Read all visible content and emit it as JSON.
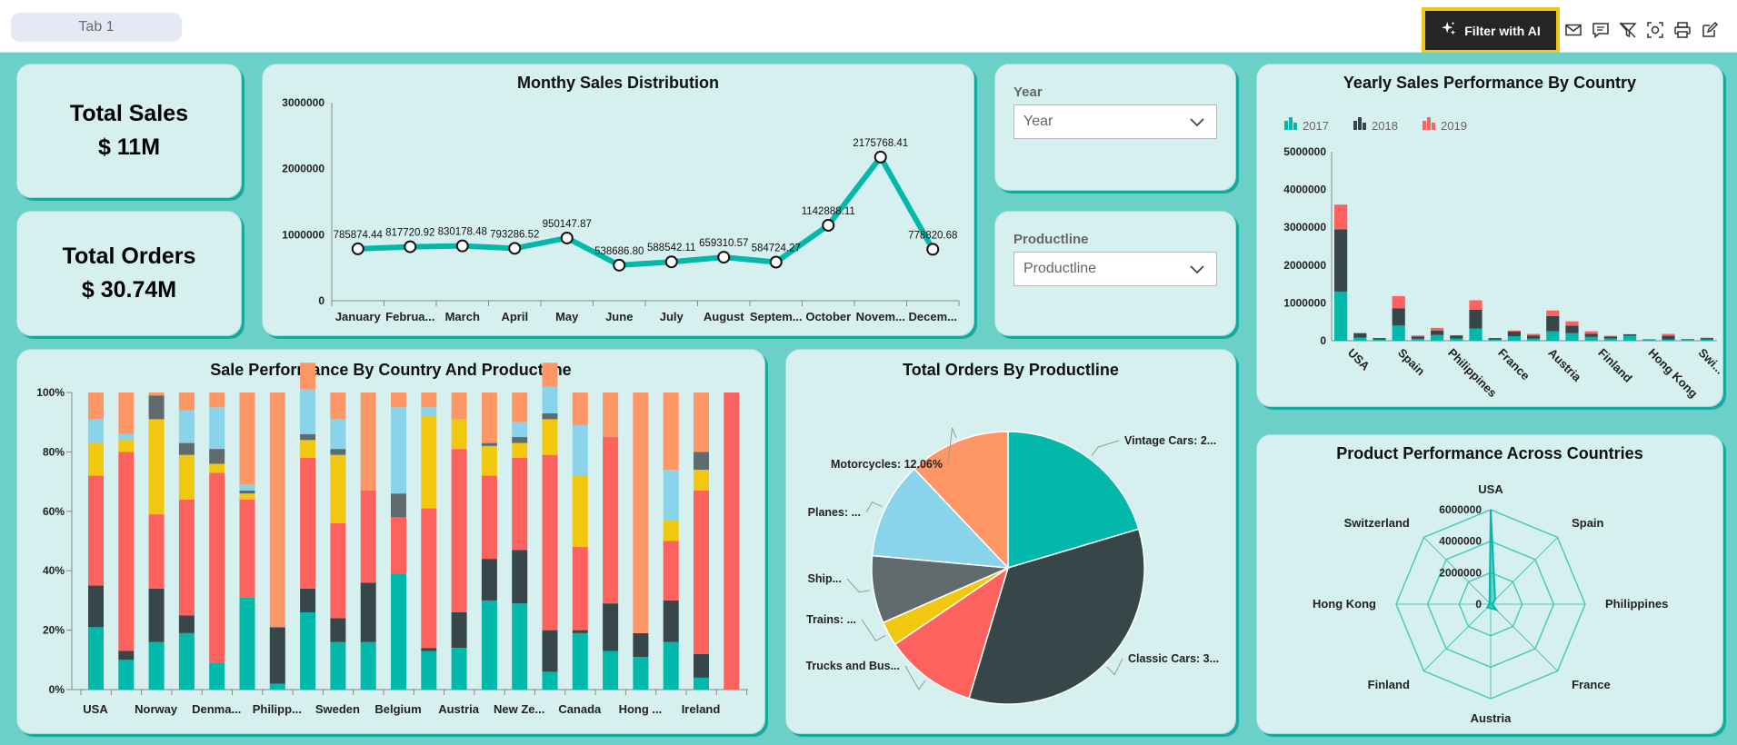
{
  "tab": {
    "label": "Tab 1"
  },
  "toolbar": {
    "ai_button": "Filter with AI"
  },
  "kpis": {
    "sales_label": "Total Sales",
    "sales_value": "$ 11M",
    "orders_label": "Total Orders",
    "orders_value": "$ 30.74M"
  },
  "slicers": {
    "year_title": "Year",
    "year_placeholder": "Year",
    "productline_title": "Productline",
    "productline_placeholder": "Productline"
  },
  "colors": {
    "teal": "#01b8aa",
    "dark": "#374649",
    "red": "#fd625e",
    "yellow": "#f2c80f",
    "gray": "#5f6b6d",
    "lightblue": "#8ad4eb",
    "orange": "#fe9666",
    "background": "#6ad0c8",
    "card": "#d5f0ef"
  },
  "charts": {
    "monthly": {
      "title": "Monthy Sales Distribution",
      "type": "line",
      "categories": [
        "January",
        "Februa...",
        "March",
        "April",
        "May",
        "June",
        "July",
        "August",
        "Septem...",
        "October",
        "Novem...",
        "Decem..."
      ],
      "values": [
        785874.44,
        817720.92,
        830178.48,
        793286.52,
        950147.87,
        538686.8,
        588542.11,
        659310.57,
        584724.27,
        1142888.11,
        2175768.41,
        778820.68
      ],
      "labels": [
        "785874.44",
        "817720.92",
        "830178.48",
        "793286.52",
        "950147.87",
        "538686.80",
        "588542.11",
        "659310.57",
        "584724.27",
        "1142888.11",
        "2175768.41",
        "778820.68"
      ],
      "yticks": [
        "0",
        "1000000",
        "2000000",
        "3000000"
      ],
      "ylim": [
        0,
        3000000
      ]
    },
    "yearly": {
      "title": "Yearly Sales Performance By Country",
      "type": "bar",
      "legend": [
        "2017",
        "2018",
        "2019"
      ],
      "categories": [
        "USA",
        "Spain",
        "Philippines",
        "France",
        "Austria",
        "Finland",
        "Hong Kong",
        "Swi..."
      ],
      "yticks": [
        "0",
        "1000000",
        "2000000",
        "3000000",
        "4000000",
        "5000000"
      ],
      "ylim": [
        0,
        5000000
      ],
      "series": [
        {
          "name": "2017",
          "values": [
            1300000,
            80000,
            30000,
            400000,
            50000,
            150000,
            60000,
            320000,
            30000,
            120000,
            60000,
            250000,
            200000,
            100000,
            60000,
            130000,
            20000,
            30000,
            20000,
            30000
          ]
        },
        {
          "name": "2018",
          "values": [
            1650000,
            120000,
            40000,
            460000,
            60000,
            120000,
            80000,
            500000,
            40000,
            120000,
            80000,
            400000,
            200000,
            80000,
            50000,
            40000,
            15000,
            100000,
            20000,
            40000
          ]
        },
        {
          "name": "2019",
          "values": [
            650000,
            0,
            0,
            320000,
            30000,
            70000,
            0,
            250000,
            0,
            30000,
            40000,
            150000,
            110000,
            70000,
            20000,
            0,
            0,
            50000,
            0,
            10000
          ]
        }
      ]
    },
    "stacked": {
      "title": "Sale Performance By Country And Productline",
      "type": "bar",
      "yticks": [
        "0%",
        "20%",
        "40%",
        "60%",
        "80%",
        "100%"
      ],
      "xlabels": [
        "USA",
        "Norway",
        "Denma...",
        "Philipp...",
        "Sweden",
        "Belgium",
        "Austria",
        "New Ze...",
        "Canada",
        "Hong ...",
        "Ireland"
      ],
      "bars": [
        [
          21,
          14,
          37,
          11,
          0,
          8,
          9
        ],
        [
          10,
          3,
          67,
          4,
          0,
          2,
          14
        ],
        [
          16,
          18,
          25,
          32,
          8,
          0,
          1
        ],
        [
          19,
          6,
          39,
          15,
          4,
          11,
          6
        ],
        [
          9,
          0,
          64,
          3,
          5,
          14,
          5
        ],
        [
          31,
          0,
          33,
          2,
          1,
          2,
          31
        ],
        [
          2,
          19,
          0,
          0,
          0,
          0,
          79
        ],
        [
          26,
          8,
          44,
          6,
          2,
          15,
          9
        ],
        [
          16,
          8,
          32,
          23,
          2,
          10,
          9
        ],
        [
          16,
          20,
          31,
          0,
          0,
          0,
          33
        ],
        [
          39,
          0,
          19,
          0,
          8,
          29,
          5
        ],
        [
          13,
          1,
          47,
          31,
          0,
          3,
          5
        ],
        [
          14,
          12,
          55,
          10,
          0,
          0,
          9
        ],
        [
          30,
          14,
          28,
          10,
          1,
          0,
          17
        ],
        [
          29,
          18,
          31,
          5,
          2,
          5,
          10
        ],
        [
          6,
          14,
          59,
          12,
          2,
          9,
          8
        ],
        [
          19,
          1,
          28,
          24,
          0,
          17,
          11
        ],
        [
          13,
          16,
          56,
          0,
          0,
          0,
          15
        ],
        [
          11,
          8,
          0,
          0,
          0,
          0,
          81
        ],
        [
          16,
          14,
          20,
          7,
          0,
          17,
          26
        ],
        [
          4,
          8,
          55,
          7,
          6,
          0,
          20
        ],
        [
          0,
          0,
          100,
          0,
          0,
          0,
          0
        ]
      ]
    },
    "pie": {
      "title": "Total Orders By Productline",
      "type": "pie",
      "slices": [
        {
          "name": "Vintage Cars",
          "value": 20.4,
          "label": "Vintage Cars: 2..."
        },
        {
          "name": "Classic Cars",
          "value": 34.2,
          "label": "Classic Cars: 3..."
        },
        {
          "name": "Trucks and Buses",
          "value": 10.9,
          "label": "Trucks and Bus..."
        },
        {
          "name": "Trains",
          "value": 2.9,
          "label": "Trains: ..."
        },
        {
          "name": "Ships",
          "value": 8.0,
          "label": "Ship..."
        },
        {
          "name": "Planes",
          "value": 11.5,
          "label": "Planes: ..."
        },
        {
          "name": "Motorcycles",
          "value": 12.06,
          "label": "Motorcycles: 12.06%"
        }
      ]
    },
    "radar": {
      "title": "Product Performance Across Countries",
      "type": "radar",
      "axes": [
        "USA",
        "Spain",
        "Philippines",
        "France",
        "Austria",
        "Finland",
        "Hong Kong",
        "Switzerland"
      ],
      "ticks": [
        "0",
        "2000000",
        "4000000",
        "6000000"
      ],
      "max": 6000000,
      "values": [
        6000000,
        400000,
        100000,
        500000,
        250000,
        300000,
        100000,
        100000
      ]
    }
  }
}
